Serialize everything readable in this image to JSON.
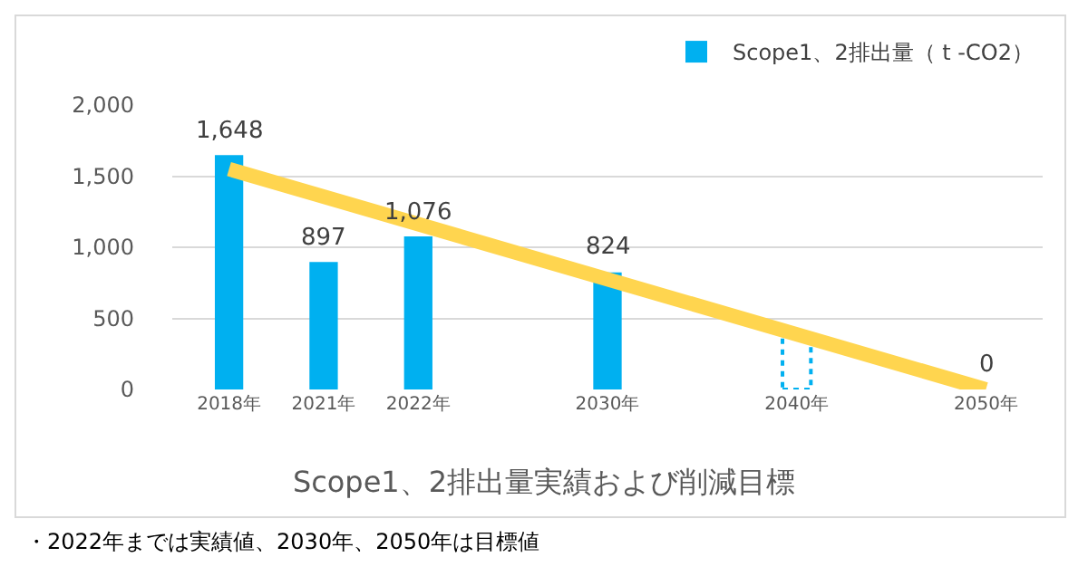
{
  "chart_data": {
    "type": "bar",
    "title": "Scope1、2排出量実績および削減目標",
    "categories": [
      "2018年",
      "2021年",
      "2022年",
      null,
      "2030年",
      null,
      "2040年",
      null,
      "2050年"
    ],
    "series": [
      {
        "name": "Scope1、2排出量（ t -CO2）",
        "color": "#00b0f0",
        "values": [
          1648,
          897,
          1076,
          null,
          824,
          null,
          null,
          null,
          0
        ],
        "value_labels": [
          "1,648",
          "897",
          "1,076",
          null,
          "824",
          null,
          null,
          null,
          "0"
        ]
      },
      {
        "color": "#00b0f0",
        "line_style": "dotted",
        "values": [
          null,
          null,
          null,
          null,
          null,
          null,
          400,
          null,
          null
        ]
      },
      {
        "type": "line",
        "color": "#ffd54f",
        "x": [
          "2018年",
          "2050年"
        ],
        "values": [
          1550,
          0
        ]
      }
    ],
    "ylim": [
      0,
      2000
    ],
    "yticks": [
      0,
      {
        "value": 500,
        "label": "500"
      },
      {
        "value": 1000,
        "label": "1,000"
      },
      {
        "value": 1500,
        "label": "1,500"
      },
      {
        "value": 2000,
        "label": "2,000"
      }
    ],
    "grid": "y",
    "legend": "top right",
    "annotations": [
      "・2022年までは実績値、2030年、2050年は目標値"
    ]
  }
}
